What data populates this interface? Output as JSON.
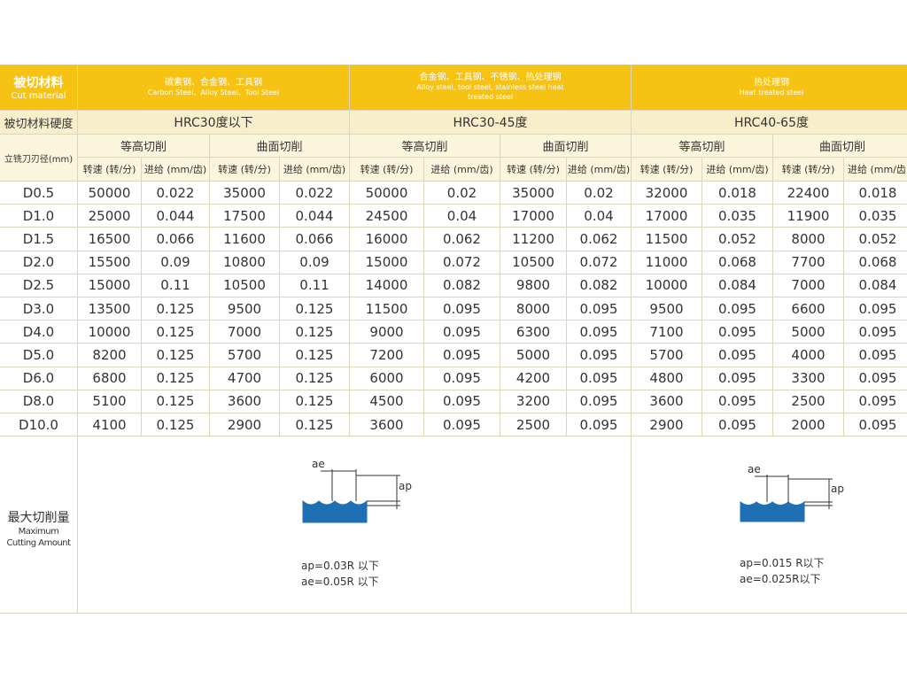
{
  "header": {
    "cut_material_label": "被切材料",
    "cut_material_label_en": "Cut material",
    "hardness_label": "被切材料硬度",
    "diameter_label": "立铣刀刃径(mm)"
  },
  "groups": [
    {
      "name": "碳素钢、合金钢、工具钢",
      "name_en": "Carbon Steel、Alloy Steel、Tool Steel",
      "hardness": "HRC30度以下",
      "methods": [
        "等高切削",
        "曲面切削"
      ]
    },
    {
      "name": "合金钢、工具钢、不锈钢、热处理钢",
      "name_en": "Alloy steel, tool steel, stainless steel heat treated steel",
      "hardness": "HRC30-45度",
      "methods": [
        "等高切削",
        "曲面切削"
      ]
    },
    {
      "name": "热处理钢",
      "name_en": "Heat treated steel",
      "hardness": "HRC40-65度",
      "methods": [
        "等高切削",
        "曲面切削"
      ]
    }
  ],
  "column_headers": [
    "转速 (转/分)",
    "进给 (mm/齿)",
    "转速 (转/分)",
    "进给 (mm/齿)",
    "转速 (转/分)",
    "进给 (mm/齿)",
    "转速 (转/分)",
    "进给 (mm/齿)",
    "转速 (转/分)",
    "进给 (mm/齿)",
    "转速 (转/分)",
    "进给 (mm/齿)"
  ],
  "rows": [
    [
      "D0.5",
      "50000",
      "0.022",
      "35000",
      "0.022",
      "50000",
      "0.02",
      "35000",
      "0.02",
      "32000",
      "0.018",
      "22400",
      "0.018"
    ],
    [
      "D1.0",
      "25000",
      "0.044",
      "17500",
      "0.044",
      "24500",
      "0.04",
      "17000",
      "0.04",
      "17000",
      "0.035",
      "11900",
      "0.035"
    ],
    [
      "D1.5",
      "16500",
      "0.066",
      "11600",
      "0.066",
      "16000",
      "0.062",
      "11200",
      "0.062",
      "11500",
      "0.052",
      "8000",
      "0.052"
    ],
    [
      "D2.0",
      "15500",
      "0.09",
      "10800",
      "0.09",
      "15000",
      "0.072",
      "10500",
      "0.072",
      "11000",
      "0.068",
      "7700",
      "0.068"
    ],
    [
      "D2.5",
      "15000",
      "0.11",
      "10500",
      "0.11",
      "14000",
      "0.082",
      "9800",
      "0.082",
      "10000",
      "0.084",
      "7000",
      "0.084"
    ],
    [
      "D3.0",
      "13500",
      "0.125",
      "9500",
      "0.125",
      "11500",
      "0.095",
      "8000",
      "0.095",
      "9500",
      "0.095",
      "6600",
      "0.095"
    ],
    [
      "D4.0",
      "10000",
      "0.125",
      "7000",
      "0.125",
      "9000",
      "0.095",
      "6300",
      "0.095",
      "7100",
      "0.095",
      "5000",
      "0.095"
    ],
    [
      "D5.0",
      "8200",
      "0.125",
      "5700",
      "0.125",
      "7200",
      "0.095",
      "5000",
      "0.095",
      "5700",
      "0.095",
      "4000",
      "0.095"
    ],
    [
      "D6.0",
      "6800",
      "0.125",
      "4700",
      "0.125",
      "6000",
      "0.095",
      "4200",
      "0.095",
      "4800",
      "0.095",
      "3300",
      "0.095"
    ],
    [
      "D8.0",
      "5100",
      "0.125",
      "3600",
      "0.125",
      "4500",
      "0.095",
      "3200",
      "0.095",
      "3600",
      "0.095",
      "2500",
      "0.095"
    ],
    [
      "D10.0",
      "4100",
      "0.125",
      "2900",
      "0.125",
      "3600",
      "0.095",
      "2500",
      "0.095",
      "2900",
      "0.095",
      "2000",
      "0.095"
    ]
  ],
  "max_cut": {
    "label": "最大切削量",
    "label_en": "Maximum Cutting Amount",
    "diagrams": [
      {
        "ae": "ae",
        "ap": "ap",
        "lines": [
          "ap=0.03R 以下",
          "ae=0.05R 以下"
        ]
      },
      {
        "ae": "ae",
        "ap": "ap",
        "lines": [
          "ap=0.015 R以下",
          "ae=0.025R以下"
        ]
      }
    ]
  }
}
